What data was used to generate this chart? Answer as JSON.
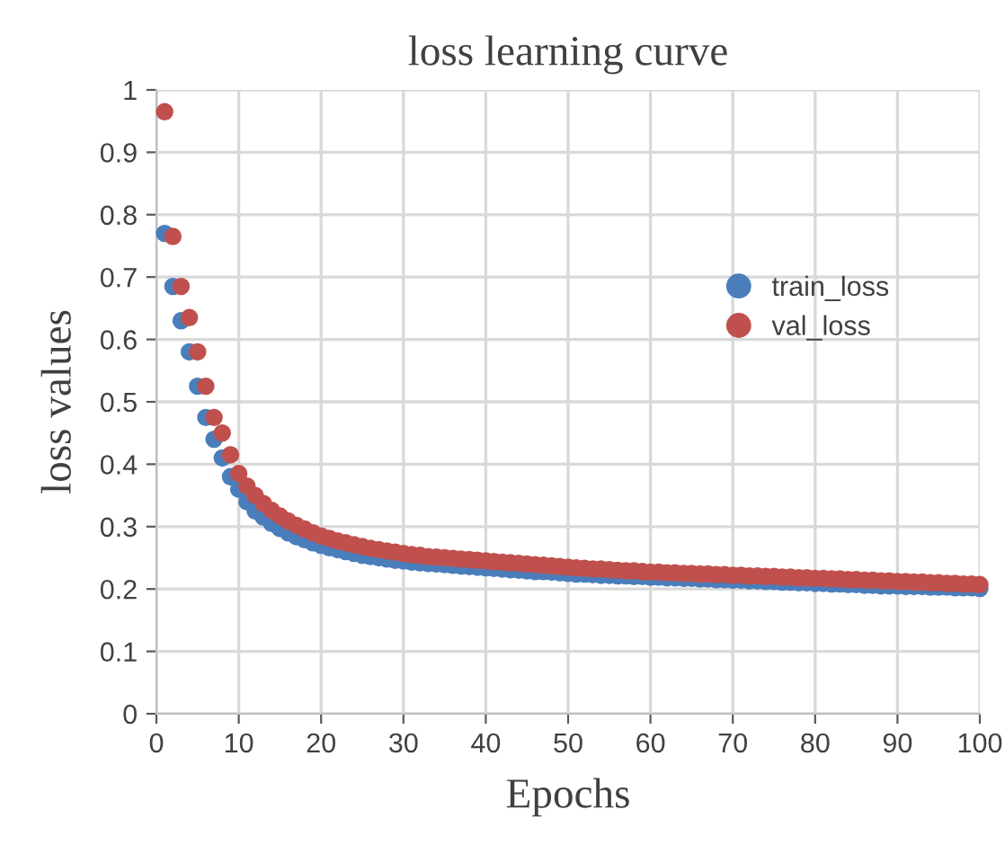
{
  "chart_data": {
    "type": "scatter",
    "title": "loss learning curve",
    "xlabel": "Epochs",
    "ylabel": "loss values",
    "x": [
      1,
      2,
      3,
      4,
      5,
      6,
      7,
      8,
      9,
      10,
      11,
      12,
      13,
      14,
      15,
      16,
      17,
      18,
      19,
      20,
      21,
      22,
      23,
      24,
      25,
      26,
      27,
      28,
      29,
      30,
      31,
      32,
      33,
      34,
      35,
      36,
      37,
      38,
      39,
      40,
      41,
      42,
      43,
      44,
      45,
      46,
      47,
      48,
      49,
      50,
      51,
      52,
      53,
      54,
      55,
      56,
      57,
      58,
      59,
      60,
      61,
      62,
      63,
      64,
      65,
      66,
      67,
      68,
      69,
      70,
      71,
      72,
      73,
      74,
      75,
      76,
      77,
      78,
      79,
      80,
      81,
      82,
      83,
      84,
      85,
      86,
      87,
      88,
      89,
      90,
      91,
      92,
      93,
      94,
      95,
      96,
      97,
      98,
      99,
      100
    ],
    "series": [
      {
        "name": "train_loss",
        "color": "#4a7ebb",
        "values": [
          0.77,
          0.685,
          0.63,
          0.58,
          0.525,
          0.475,
          0.44,
          0.41,
          0.38,
          0.36,
          0.34,
          0.325,
          0.315,
          0.305,
          0.297,
          0.29,
          0.284,
          0.279,
          0.274,
          0.27,
          0.266,
          0.263,
          0.26,
          0.257,
          0.254,
          0.252,
          0.25,
          0.248,
          0.246,
          0.245,
          0.243,
          0.242,
          0.241,
          0.24,
          0.239,
          0.238,
          0.237,
          0.236,
          0.235,
          0.234,
          0.233,
          0.232,
          0.231,
          0.23,
          0.229,
          0.228,
          0.228,
          0.227,
          0.226,
          0.225,
          0.224,
          0.224,
          0.223,
          0.222,
          0.222,
          0.221,
          0.221,
          0.22,
          0.22,
          0.219,
          0.219,
          0.218,
          0.218,
          0.217,
          0.217,
          0.216,
          0.216,
          0.215,
          0.215,
          0.214,
          0.214,
          0.213,
          0.213,
          0.212,
          0.212,
          0.211,
          0.211,
          0.21,
          0.21,
          0.209,
          0.209,
          0.208,
          0.208,
          0.207,
          0.207,
          0.206,
          0.206,
          0.205,
          0.205,
          0.205,
          0.204,
          0.204,
          0.204,
          0.203,
          0.203,
          0.203,
          0.202,
          0.202,
          0.202,
          0.201
        ]
      },
      {
        "name": "val_loss",
        "color": "#c0504d",
        "values": [
          0.965,
          0.765,
          0.685,
          0.635,
          0.58,
          0.525,
          0.475,
          0.45,
          0.415,
          0.385,
          0.365,
          0.35,
          0.337,
          0.326,
          0.317,
          0.309,
          0.302,
          0.296,
          0.29,
          0.285,
          0.281,
          0.277,
          0.274,
          0.271,
          0.268,
          0.265,
          0.263,
          0.261,
          0.259,
          0.257,
          0.255,
          0.254,
          0.252,
          0.251,
          0.25,
          0.249,
          0.248,
          0.247,
          0.246,
          0.245,
          0.244,
          0.243,
          0.242,
          0.241,
          0.24,
          0.239,
          0.238,
          0.237,
          0.236,
          0.235,
          0.234,
          0.233,
          0.232,
          0.232,
          0.231,
          0.23,
          0.229,
          0.229,
          0.228,
          0.227,
          0.227,
          0.226,
          0.226,
          0.225,
          0.225,
          0.224,
          0.224,
          0.223,
          0.223,
          0.222,
          0.222,
          0.221,
          0.221,
          0.22,
          0.22,
          0.219,
          0.219,
          0.218,
          0.218,
          0.217,
          0.217,
          0.216,
          0.216,
          0.215,
          0.215,
          0.214,
          0.214,
          0.213,
          0.213,
          0.212,
          0.212,
          0.211,
          0.211,
          0.21,
          0.21,
          0.209,
          0.209,
          0.208,
          0.208,
          0.207
        ]
      }
    ],
    "xlim": [
      0,
      100
    ],
    "xticks": [
      0,
      10,
      20,
      30,
      40,
      50,
      60,
      70,
      80,
      90,
      100
    ],
    "ylim": [
      0,
      1
    ],
    "yticks": [
      0,
      0.1,
      0.2,
      0.3,
      0.4,
      0.5,
      0.6,
      0.7,
      0.8,
      0.9,
      1
    ],
    "grid": true,
    "legend": "right",
    "marker": "circle"
  }
}
